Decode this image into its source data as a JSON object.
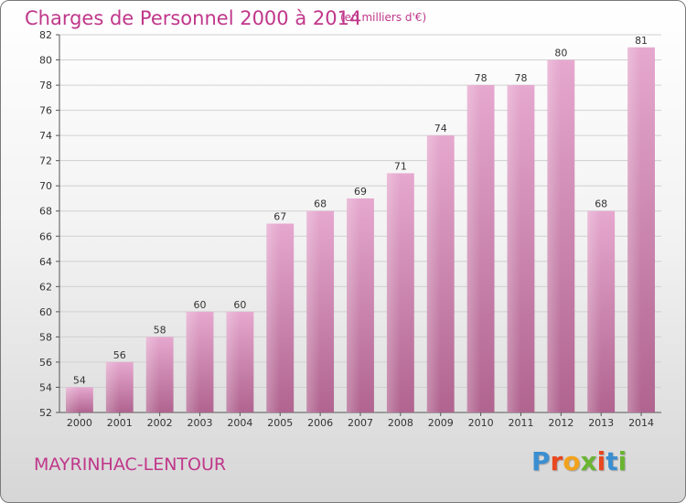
{
  "title": "Charges de Personnel 2000 à 2014",
  "unit": "(en milliers d'€)",
  "commune": "MAYRINHAC-LENTOUR",
  "logo": {
    "text": "Proxiti",
    "letter_colors": [
      "#3a8fd1",
      "#e8471f",
      "#f2a21b",
      "#6ab432",
      "#e8471f",
      "#3a8fd1",
      "#6ab432"
    ]
  },
  "colors": {
    "title": "#c0378a",
    "bar_top": "#e6a8cf",
    "bar_bottom": "#b0648f"
  },
  "chart_data": {
    "type": "bar",
    "categories": [
      "2000",
      "2001",
      "2002",
      "2003",
      "2004",
      "2005",
      "2006",
      "2007",
      "2008",
      "2009",
      "2010",
      "2011",
      "2012",
      "2013",
      "2014"
    ],
    "values": [
      54,
      56,
      58,
      60,
      60,
      67,
      68,
      69,
      71,
      74,
      78,
      78,
      80,
      68,
      81
    ],
    "ylim": [
      52,
      82
    ],
    "yticks": [
      52,
      54,
      56,
      58,
      60,
      62,
      64,
      66,
      68,
      70,
      72,
      74,
      76,
      78,
      80,
      82
    ],
    "grid": true
  }
}
